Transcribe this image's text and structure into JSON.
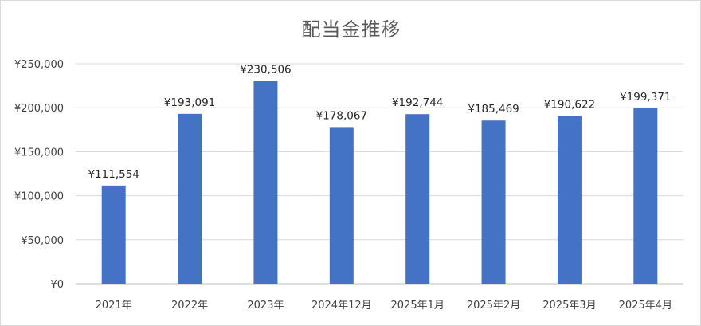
{
  "chart_data": {
    "type": "bar",
    "title": "配当金推移",
    "xlabel": "",
    "ylabel": "",
    "categories": [
      "2021年",
      "2022年",
      "2023年",
      "2024年12月",
      "2025年1月",
      "2025年2月",
      "2025年3月",
      "2025年4月"
    ],
    "values": [
      111554,
      193091,
      230506,
      178067,
      192744,
      185469,
      190622,
      199371
    ],
    "data_labels": [
      "¥111,554",
      "¥193,091",
      "¥230,506",
      "¥178,067",
      "¥192,744",
      "¥185,469",
      "¥190,622",
      "¥199,371"
    ],
    "ylim": [
      0,
      250000
    ],
    "yticks": [
      0,
      50000,
      100000,
      150000,
      200000,
      250000
    ],
    "ytick_labels": [
      "¥0",
      "¥50,000",
      "¥100,000",
      "¥150,000",
      "¥200,000",
      "¥250,000"
    ],
    "grid": true,
    "legend": "none",
    "colors": {
      "bar": "#4472c4",
      "grid": "#d9d9d9",
      "axis": "#bfbfbf"
    }
  }
}
